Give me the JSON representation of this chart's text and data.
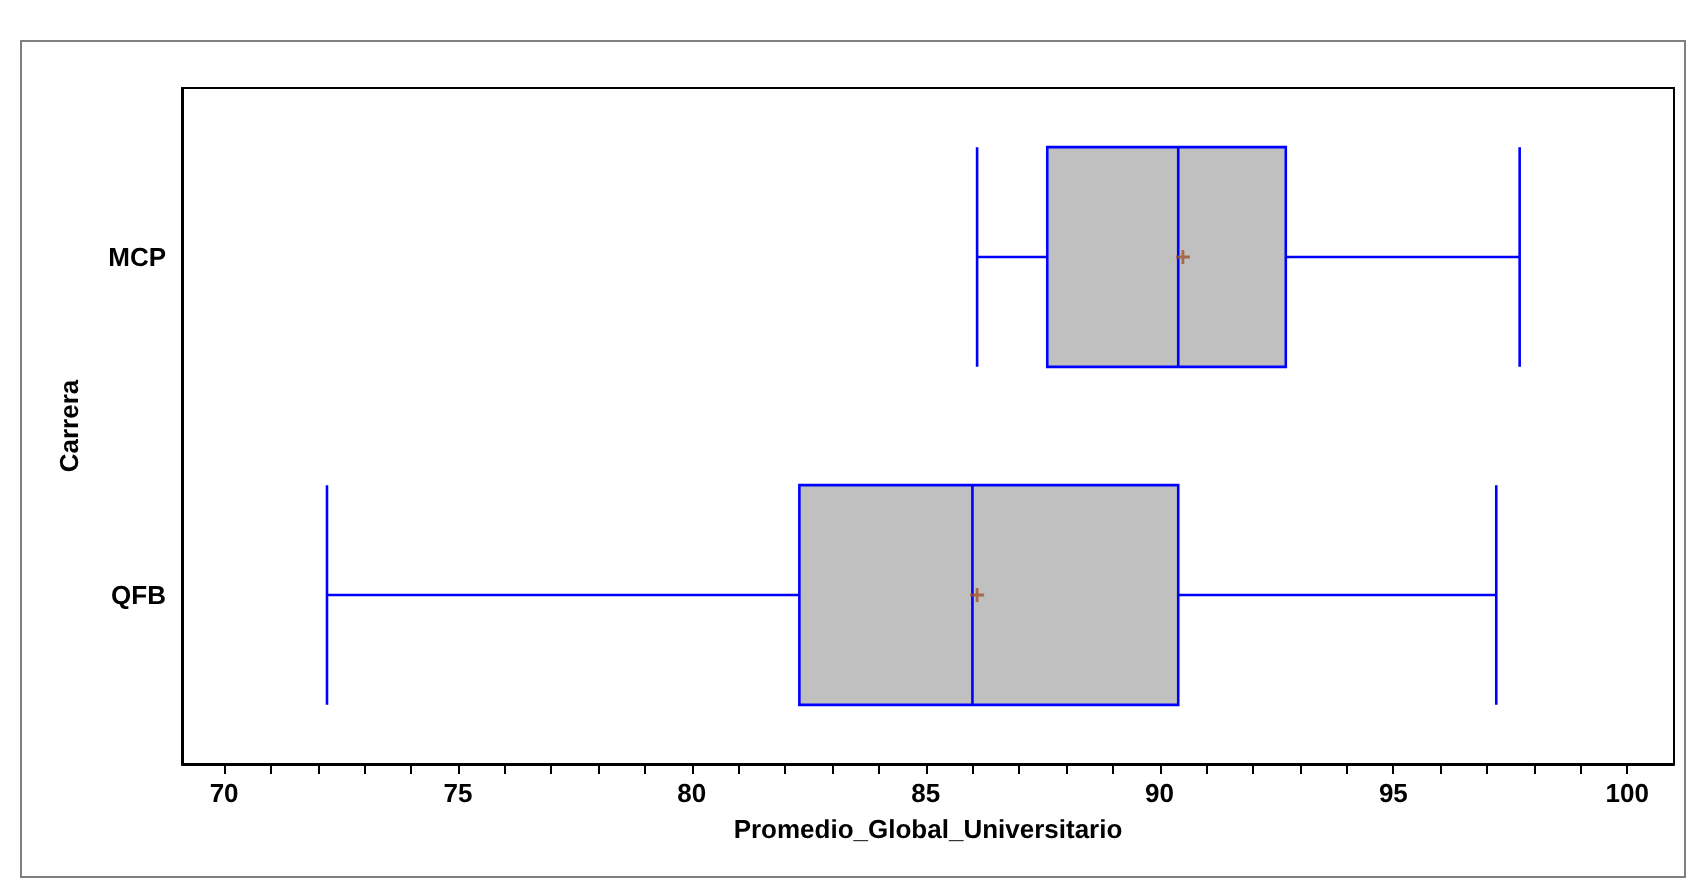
{
  "chart_data": {
    "type": "box",
    "orientation": "horizontal",
    "xlabel": "Promedio_Global_Universitario",
    "ylabel": "Carrera",
    "categories": [
      "MCP",
      "QFB"
    ],
    "color": "#c0c0c0",
    "boxes": [
      {
        "low": 86.1,
        "q1": 87.6,
        "median": 90.4,
        "q3": 92.7,
        "high": 97.7,
        "mean": 90.5
      },
      {
        "low": 72.2,
        "q1": 82.3,
        "median": 86.0,
        "q3": 90.4,
        "high": 97.2,
        "mean": 86.1
      }
    ],
    "xlim": [
      69.1,
      101
    ],
    "xticks": [
      70,
      {
        "value": 71,
        "label": null
      },
      {
        "value": 72,
        "label": null
      },
      {
        "value": 73,
        "label": null
      },
      {
        "value": 74,
        "label": null
      },
      75,
      {
        "value": 76,
        "label": null
      },
      {
        "value": 77,
        "label": null
      },
      {
        "value": 78,
        "label": null
      },
      {
        "value": 79,
        "label": null
      },
      80,
      {
        "value": 81,
        "label": null
      },
      {
        "value": 82,
        "label": null
      },
      {
        "value": 83,
        "label": null
      },
      {
        "value": 84,
        "label": null
      },
      85,
      {
        "value": 86,
        "label": null
      },
      {
        "value": 87,
        "label": null
      },
      {
        "value": 88,
        "label": null
      },
      {
        "value": 89,
        "label": null
      },
      90,
      {
        "value": 91,
        "label": null
      },
      {
        "value": 92,
        "label": null
      },
      {
        "value": 93,
        "label": null
      },
      {
        "value": 94,
        "label": null
      },
      95,
      {
        "value": 96,
        "label": null
      },
      {
        "value": 97,
        "label": null
      },
      {
        "value": 98,
        "label": null
      },
      {
        "value": 99,
        "label": null
      },
      100
    ],
    "grid": false
  }
}
